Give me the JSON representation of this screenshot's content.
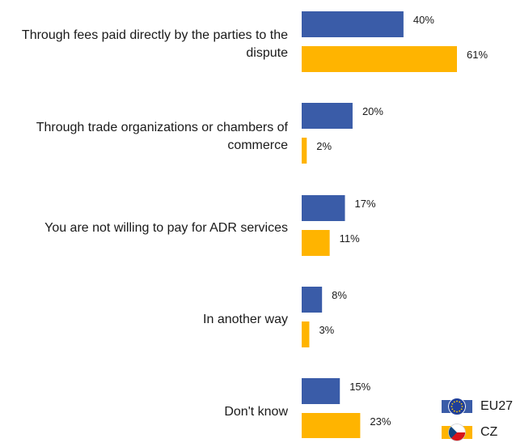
{
  "chart_data": {
    "type": "bar",
    "orientation": "horizontal",
    "categories": [
      "Through fees paid directly by the parties to the dispute",
      "Through trade organizations or chambers of commerce",
      "You are not willing to pay for ADR services",
      "In another way",
      "Don't know"
    ],
    "category_lines": [
      [
        "Through fees paid directly by the parties to the",
        "dispute"
      ],
      [
        "Through trade organizations or chambers of",
        "commerce"
      ],
      [
        "You are not willing to pay for ADR services"
      ],
      [
        "In another way"
      ],
      [
        "Don't know"
      ]
    ],
    "series": [
      {
        "name": "EU27",
        "color": "#3a5ca8",
        "values": [
          40,
          20,
          17,
          8,
          15
        ],
        "labels": [
          "40%",
          "20%",
          "17%",
          "8%",
          "15%"
        ]
      },
      {
        "name": "CZ",
        "color": "#ffb400",
        "values": [
          61,
          2,
          11,
          3,
          23
        ],
        "labels": [
          "61%",
          "2%",
          "11%",
          "3%",
          "23%"
        ]
      }
    ],
    "xlim": [
      0,
      100
    ],
    "grid": false,
    "legend": "bottom-right"
  },
  "legend": {
    "items": [
      {
        "label": "EU27",
        "icon": "eu-flag-icon",
        "color": "#3a5ca8",
        "flag_colors": [
          "#1f3f99",
          "#ffcc00"
        ]
      },
      {
        "label": "CZ",
        "icon": "cz-flag-icon",
        "color": "#ffb400",
        "flag_colors": [
          "#ffffff",
          "#d7141a",
          "#11457e"
        ]
      }
    ]
  }
}
